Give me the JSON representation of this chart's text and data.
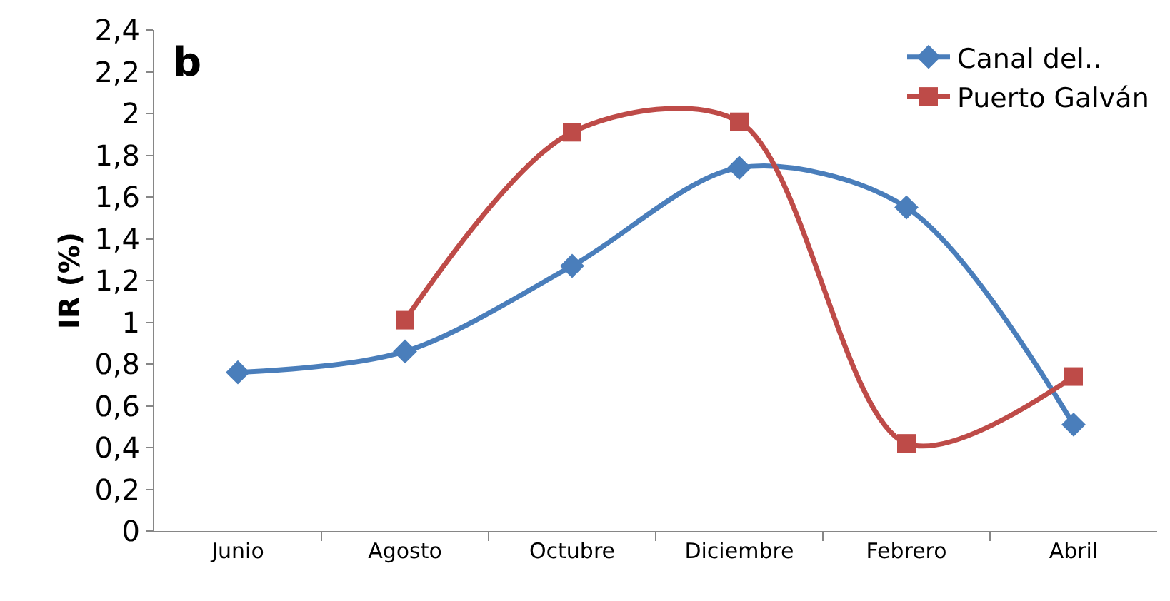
{
  "chart_data": {
    "type": "line",
    "ylabel": "IR (%)",
    "annotations": [
      "b"
    ],
    "categories": [
      "Junio",
      "Agosto",
      "Octubre",
      "Diciembre",
      "Febrero",
      "Abril"
    ],
    "series": [
      {
        "name": "Canal del..",
        "color": "#4a7ebb",
        "marker": "diamond",
        "values": [
          0.76,
          0.86,
          1.27,
          1.74,
          1.55,
          0.51
        ]
      },
      {
        "name": "Puerto Galván",
        "color": "#be4b48",
        "marker": "square",
        "values": [
          null,
          1.01,
          1.91,
          1.96,
          0.42,
          0.74
        ]
      }
    ],
    "ylim": [
      0,
      2.4
    ],
    "yticks": [
      0,
      {
        "value": 0.2,
        "label": "0,2"
      },
      {
        "value": 0.4,
        "label": "0,4"
      },
      {
        "value": 0.6,
        "label": "0,6"
      },
      {
        "value": 0.8,
        "label": "0,8"
      },
      1,
      {
        "value": 1.2,
        "label": "1,2"
      },
      {
        "value": 1.4,
        "label": "1,4"
      },
      {
        "value": 1.6,
        "label": "1,6"
      },
      {
        "value": 1.8,
        "label": "1,8"
      },
      2,
      {
        "value": 2.2,
        "label": "2,2"
      },
      {
        "value": 2.4,
        "label": "2,4"
      }
    ],
    "legend": "top right",
    "line_style": "solid"
  }
}
